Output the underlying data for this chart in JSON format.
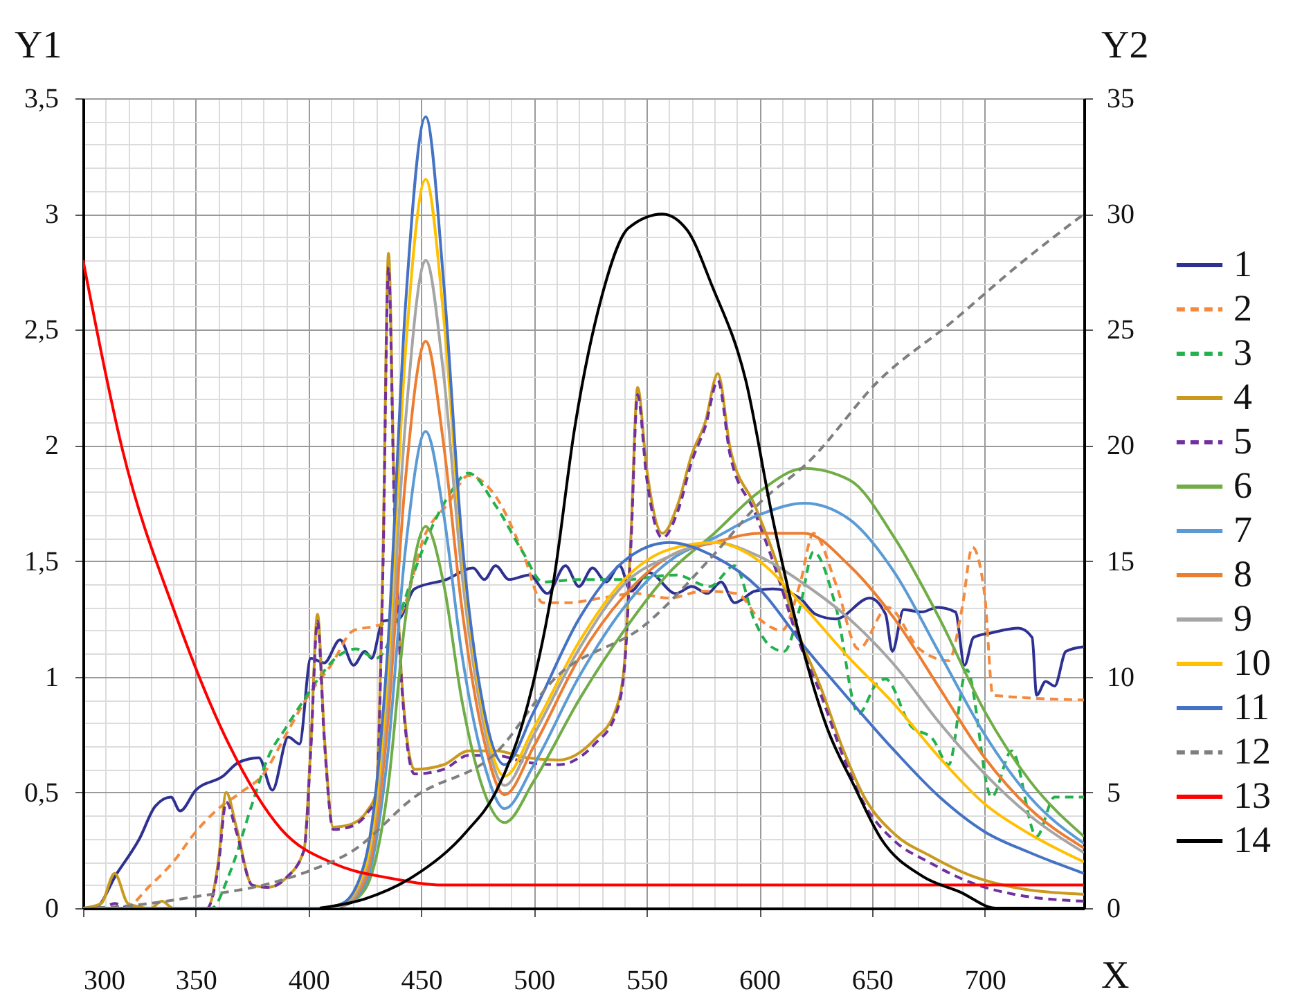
{
  "chart_data": {
    "type": "line",
    "xlabel": "X",
    "ylabel": "Y1",
    "y2label": "Y2",
    "xlim": [
      300,
      744
    ],
    "ylim": [
      0,
      3.5
    ],
    "y2lim": [
      0,
      35
    ],
    "xticks": [
      300,
      350,
      400,
      450,
      500,
      550,
      600,
      650,
      700
    ],
    "yticks": [
      0,
      {
        "value": 0.5,
        "label": "0,5"
      },
      1,
      {
        "value": 1.5,
        "label": "1,5"
      },
      2,
      {
        "value": 2.5,
        "label": "2,5"
      },
      3,
      {
        "value": 3.5,
        "label": "3,5"
      }
    ],
    "y2ticks": [
      0,
      5,
      10,
      15,
      20,
      25,
      30,
      35
    ],
    "grid": true,
    "legend": "right",
    "series": [
      {
        "name": "1",
        "color": "#2e3192",
        "x": [
          300,
          305,
          315,
          325,
          332,
          339,
          343,
          350,
          362,
          369,
          378,
          384,
          391,
          396,
          401,
          407,
          414,
          420,
          425,
          428,
          433,
          440,
          447,
          461,
          473,
          478,
          483,
          489,
          498,
          506,
          514,
          520,
          526,
          532,
          538,
          543,
          551,
          563,
          570,
          577,
          583,
          589,
          598,
          606,
          618,
          625,
          634,
          649,
          656,
          659,
          664,
          672,
          679,
          687,
          691,
          695,
          703,
          715,
          721,
          723,
          727,
          731,
          736,
          744
        ],
        "values": [
          0,
          0,
          0.15,
          0.3,
          0.44,
          0.48,
          0.42,
          0.51,
          0.57,
          0.63,
          0.65,
          0.51,
          0.74,
          0.71,
          1.08,
          1.06,
          1.16,
          1.05,
          1.11,
          1.08,
          1.24,
          1.25,
          1.38,
          1.42,
          1.47,
          1.42,
          1.48,
          1.42,
          1.44,
          1.36,
          1.48,
          1.39,
          1.47,
          1.41,
          1.48,
          1.37,
          1.45,
          1.36,
          1.39,
          1.36,
          1.41,
          1.32,
          1.37,
          1.38,
          1.34,
          1.27,
          1.25,
          1.34,
          1.27,
          1.11,
          1.29,
          1.28,
          1.3,
          1.28,
          1.05,
          1.17,
          1.19,
          1.21,
          1.17,
          0.92,
          0.98,
          0.96,
          1.11,
          1.13
        ]
      },
      {
        "name": "2",
        "color": "#f58a3c",
        "line_style": "dashed",
        "x": [
          300,
          318,
          330,
          340,
          350,
          360,
          370,
          380,
          390,
          400,
          410,
          420,
          430,
          440,
          452,
          462,
          471,
          483,
          495,
          504,
          515,
          530,
          545,
          560,
          575,
          590,
          600,
          610,
          618,
          624,
          634,
          644,
          657,
          671,
          684,
          690,
          694.5,
          700,
          703.6,
          744
        ],
        "values": [
          0,
          0,
          0.1,
          0.2,
          0.33,
          0.43,
          0.5,
          0.58,
          0.75,
          0.92,
          1.05,
          1.2,
          1.22,
          1.26,
          1.62,
          1.75,
          1.87,
          1.78,
          1.54,
          1.32,
          1.32,
          1.34,
          1.36,
          1.34,
          1.37,
          1.36,
          1.25,
          1.2,
          1.4,
          1.62,
          1.4,
          1.12,
          1.3,
          1.12,
          1.07,
          1.3,
          1.56,
          1.35,
          0.92,
          0.9
        ]
      },
      {
        "name": "3",
        "color": "#22b14c",
        "line_style": "dashed",
        "x": [
          300,
          357,
          365,
          375,
          382,
          390,
          398,
          405,
          412,
          421,
          430,
          438,
          445,
          454,
          462,
          471,
          483,
          495,
          504,
          520,
          540,
          563,
          578,
          589,
          598,
          604,
          611,
          618,
          624,
          634,
          644,
          652,
          656,
          667,
          677,
          684,
          692,
          703,
          712,
          723,
          731,
          744
        ],
        "values": [
          0,
          0,
          0.15,
          0.45,
          0.65,
          0.78,
          0.9,
          1.0,
          1.08,
          1.12,
          1.08,
          1.2,
          1.4,
          1.63,
          1.78,
          1.88,
          1.74,
          1.54,
          1.41,
          1.42,
          1.42,
          1.44,
          1.39,
          1.48,
          1.24,
          1.14,
          1.11,
          1.3,
          1.54,
          1.3,
          0.84,
          0.97,
          0.99,
          0.79,
          0.73,
          0.62,
          1.03,
          0.48,
          0.68,
          0.31,
          0.48,
          0.48
        ]
      },
      {
        "name": "4",
        "color": "#c99a1e",
        "x": [
          300,
          308,
          314,
          320,
          330,
          335,
          340,
          355,
          360,
          363.5,
          368,
          375,
          382,
          390,
          398,
          401,
          404,
          407,
          411,
          418,
          426,
          430,
          433,
          435.5,
          438,
          442,
          447,
          460,
          471,
          483,
          497,
          511,
          527,
          536,
          540,
          543,
          546,
          550,
          557,
          564,
          570,
          576,
          581.6,
          587,
          598,
          606,
          618,
          627,
          637,
          646,
          660,
          675,
          694,
          713,
          744
        ],
        "values": [
          0,
          0.02,
          0.15,
          0.02,
          0,
          0.03,
          0,
          0,
          0.2,
          0.5,
          0.35,
          0.1,
          0.09,
          0.13,
          0.25,
          0.7,
          1.27,
          0.75,
          0.35,
          0.36,
          0.42,
          0.5,
          1.5,
          2.83,
          1.8,
          0.9,
          0.6,
          0.62,
          0.68,
          0.68,
          0.65,
          0.64,
          0.73,
          0.85,
          1.04,
          1.6,
          2.25,
          1.9,
          1.62,
          1.75,
          1.96,
          2.1,
          2.31,
          1.99,
          1.74,
          1.54,
          1.17,
          0.96,
          0.69,
          0.49,
          0.32,
          0.23,
          0.14,
          0.09,
          0.06
        ]
      },
      {
        "name": "5",
        "color": "#7030a0",
        "line_style": "dashed",
        "x": [
          300,
          308,
          314,
          320,
          330,
          335,
          340,
          355,
          360,
          363.5,
          368,
          375,
          382,
          390,
          398,
          401,
          404,
          407,
          411,
          418,
          426,
          430,
          433,
          435.5,
          438,
          442,
          447,
          460,
          471,
          483,
          497,
          511,
          527,
          536,
          540,
          543,
          546,
          550,
          557,
          564,
          570,
          576,
          581.6,
          587,
          598,
          606,
          618,
          627,
          637,
          646,
          660,
          675,
          694,
          713,
          744
        ],
        "values": [
          0,
          0,
          0.02,
          0,
          0,
          0,
          0,
          0,
          0.18,
          0.46,
          0.33,
          0.1,
          0.09,
          0.13,
          0.25,
          0.68,
          1.24,
          0.73,
          0.34,
          0.35,
          0.41,
          0.48,
          1.45,
          2.77,
          1.75,
          0.88,
          0.58,
          0.6,
          0.66,
          0.66,
          0.63,
          0.62,
          0.71,
          0.83,
          1.02,
          1.56,
          2.22,
          1.86,
          1.6,
          1.72,
          1.93,
          2.08,
          2.28,
          1.96,
          1.71,
          1.5,
          1.14,
          0.93,
          0.66,
          0.46,
          0.29,
          0.2,
          0.11,
          0.06,
          0.03
        ]
      },
      {
        "name": "6",
        "color": "#70ad47",
        "x": [
          300,
          405,
          415,
          425,
          435,
          443,
          452,
          460,
          468,
          478,
          487,
          500,
          520,
          540,
          560,
          580,
          600,
          620,
          640,
          660,
          680,
          700,
          720,
          744
        ],
        "values": [
          0,
          0,
          0.01,
          0.08,
          0.5,
          1.25,
          1.65,
          1.4,
          0.9,
          0.5,
          0.37,
          0.55,
          0.9,
          1.2,
          1.45,
          1.62,
          1.8,
          1.9,
          1.85,
          1.6,
          1.25,
          0.85,
          0.55,
          0.31
        ]
      },
      {
        "name": "7",
        "color": "#5b9bd5",
        "x": [
          300,
          405,
          415,
          425,
          435,
          443,
          452,
          460,
          468,
          478,
          487,
          500,
          520,
          540,
          560,
          580,
          600,
          620,
          640,
          660,
          680,
          700,
          720,
          744
        ],
        "values": [
          0,
          0,
          0.01,
          0.1,
          0.65,
          1.55,
          2.06,
          1.7,
          1.1,
          0.62,
          0.43,
          0.62,
          1.0,
          1.3,
          1.5,
          1.6,
          1.7,
          1.75,
          1.68,
          1.45,
          1.1,
          0.75,
          0.48,
          0.28
        ]
      },
      {
        "name": "8",
        "color": "#ed7d31",
        "x": [
          300,
          405,
          415,
          425,
          435,
          443,
          452,
          460,
          468,
          478,
          487,
          500,
          520,
          540,
          560,
          580,
          600,
          620,
          640,
          660,
          680,
          700,
          720,
          744
        ],
        "values": [
          0,
          0,
          0.01,
          0.12,
          0.78,
          1.85,
          2.45,
          2.0,
          1.3,
          0.72,
          0.49,
          0.7,
          1.08,
          1.35,
          1.52,
          1.58,
          1.62,
          1.62,
          1.48,
          1.25,
          0.95,
          0.65,
          0.43,
          0.26
        ]
      },
      {
        "name": "9",
        "color": "#a5a5a5",
        "x": [
          300,
          405,
          415,
          425,
          435,
          443,
          452,
          460,
          468,
          478,
          487,
          500,
          520,
          540,
          560,
          580,
          600,
          620,
          640,
          660,
          680,
          700,
          720,
          744
        ],
        "values": [
          0,
          0,
          0.01,
          0.15,
          0.9,
          2.1,
          2.8,
          2.3,
          1.45,
          0.78,
          0.53,
          0.75,
          1.12,
          1.4,
          1.52,
          1.58,
          1.52,
          1.4,
          1.25,
          1.05,
          0.8,
          0.58,
          0.4,
          0.24
        ]
      },
      {
        "name": "10",
        "color": "#ffc000",
        "x": [
          300,
          405,
          415,
          425,
          435,
          443,
          452,
          460,
          468,
          478,
          487,
          500,
          520,
          540,
          560,
          580,
          600,
          620,
          640,
          660,
          680,
          700,
          720,
          744
        ],
        "values": [
          0,
          0,
          0.02,
          0.17,
          1.0,
          2.4,
          3.15,
          2.55,
          1.55,
          0.82,
          0.57,
          0.78,
          1.15,
          1.42,
          1.55,
          1.58,
          1.5,
          1.3,
          1.08,
          0.88,
          0.65,
          0.45,
          0.32,
          0.2
        ]
      },
      {
        "name": "11",
        "color": "#4472c4",
        "x": [
          300,
          405,
          415,
          425,
          435,
          443,
          452,
          460,
          468,
          478,
          487,
          500,
          520,
          540,
          560,
          580,
          600,
          620,
          640,
          660,
          680,
          700,
          720,
          744
        ],
        "values": [
          0,
          0,
          0.02,
          0.2,
          1.1,
          2.6,
          3.42,
          2.7,
          1.6,
          0.85,
          0.62,
          0.85,
          1.25,
          1.5,
          1.58,
          1.52,
          1.38,
          1.13,
          0.9,
          0.68,
          0.48,
          0.33,
          0.24,
          0.15
        ]
      },
      {
        "name": "12",
        "color": "#7f7f7f",
        "line_style": "dashed",
        "axis": "y2",
        "x": [
          300,
          320,
          350,
          380,
          400,
          420,
          447,
          483,
          509,
          550,
          580,
          600,
          622,
          653,
          685,
          715,
          744
        ],
        "values": [
          0,
          0.1,
          0.5,
          1.0,
          1.6,
          2.5,
          4.8,
          6.7,
          9.9,
          12.3,
          15.3,
          17.5,
          19.3,
          22.8,
          25.3,
          27.8,
          30
        ]
      },
      {
        "name": "13",
        "color": "#ff0000",
        "x": [
          300,
          317.5,
          341,
          364.6,
          388,
          412,
          436,
          460,
          744
        ],
        "values": [
          2.8,
          1.98,
          1.27,
          0.71,
          0.34,
          0.19,
          0.13,
          0.1,
          0.1
        ]
      },
      {
        "name": "14",
        "color": "#000000",
        "axis": "y2",
        "x": [
          405,
          425,
          447,
          470,
          483,
          495,
          509,
          518,
          530,
          542,
          557,
          568,
          579,
          594,
          606,
          618,
          630,
          642,
          654,
          672,
          689,
          705,
          744
        ],
        "values": [
          0,
          0.4,
          1.4,
          3.3,
          5,
          8,
          14.3,
          20.7,
          26.4,
          29.4,
          30,
          29.3,
          26.9,
          22.8,
          16.8,
          11.7,
          7.8,
          5.3,
          3,
          1.4,
          0.7,
          0,
          0
        ]
      }
    ]
  }
}
